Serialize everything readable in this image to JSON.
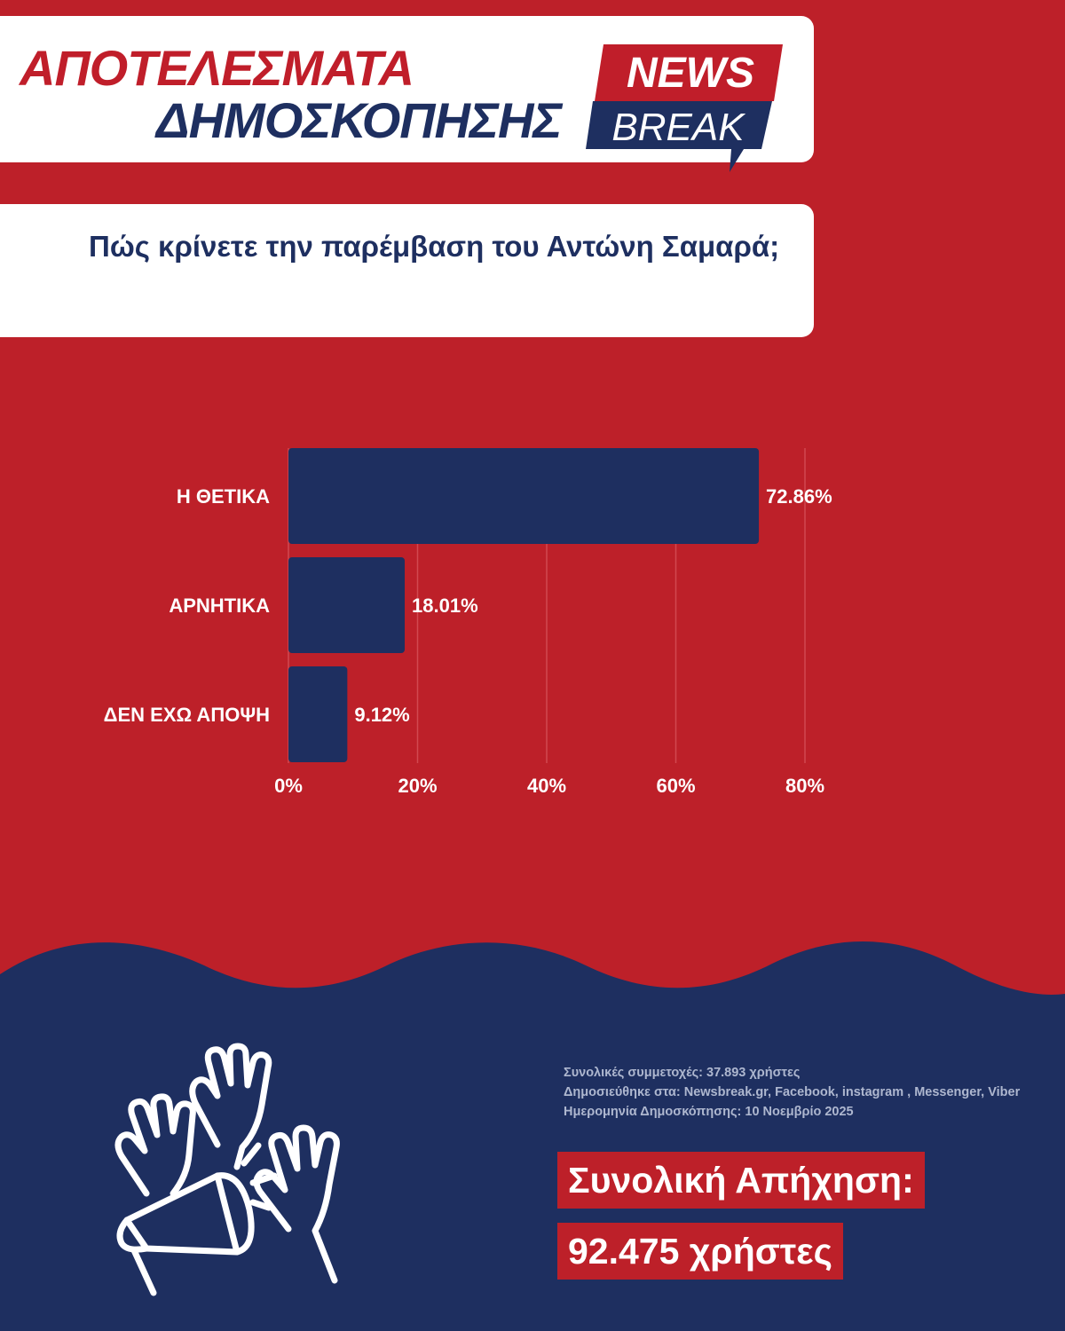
{
  "header": {
    "title_line1": "ΑΠΟΤΕΛΕΣΜΑΤΑ",
    "title_line2": "ΔΗΜΟΣΚΟΠΗΣΗΣ",
    "logo_top": "NEWS",
    "logo_bottom": "BREAK"
  },
  "question": "Πώς κρίνετε την παρέμβαση του Αντώνη Σαμαρά;",
  "colors": {
    "background_red": "#bd2029",
    "navy": "#1e2f60",
    "white": "#ffffff"
  },
  "chart_data": {
    "type": "bar",
    "orientation": "horizontal",
    "categories": [
      "Η ΘΕΤΙΚΑ",
      "ΑΡΝΗΤΙΚΑ",
      "ΔΕΝ ΕΧΩ ΑΠΟΨΗ"
    ],
    "values": [
      72.86,
      18.01,
      9.12
    ],
    "value_labels": [
      "72.86%",
      "18.01%",
      "9.12%"
    ],
    "xlim": [
      0,
      80
    ],
    "xticks": [
      "0%",
      "20%",
      "40%",
      "60%",
      "80%"
    ],
    "grid": "vertical",
    "title": "",
    "xlabel": "",
    "ylabel": ""
  },
  "footer": {
    "icon": "raised-hands-megaphone-icon",
    "meta_lines": [
      "Συνολικές συμμετοχές: 37.893 χρήστες",
      "Δημοσιεύθηκε στα: Newsbreak.gr, Facebook, instagram , Messenger, Viber",
      "Ημερομηνία Δημοσκόπησης: 10 Νοεμβρίο 2025"
    ],
    "reach_line1": "Συνολική Απήχηση:",
    "reach_line2": "92.475 χρήστες"
  }
}
